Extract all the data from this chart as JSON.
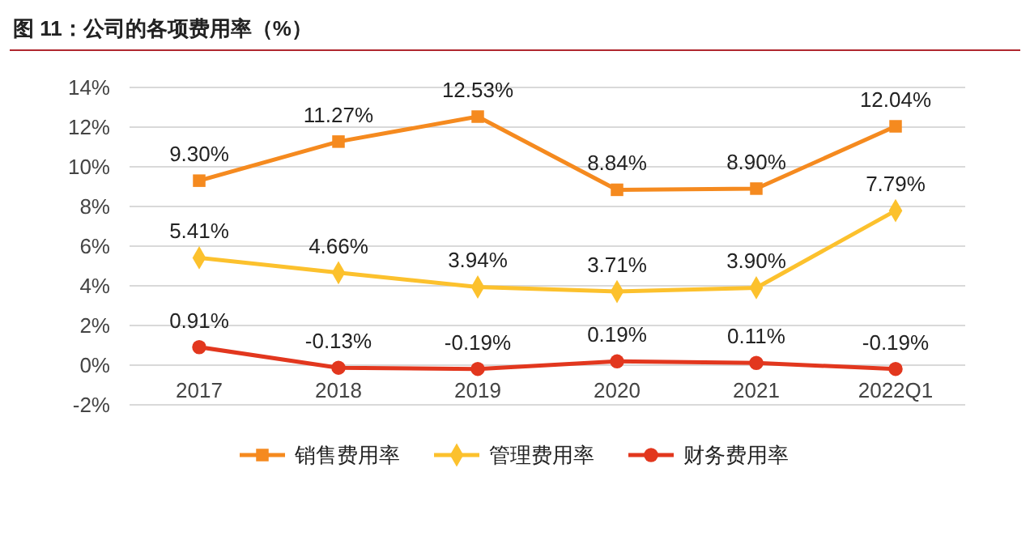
{
  "chart_data": {
    "type": "line",
    "title": "图 11：公司的各项费用率（%）",
    "categories": [
      "2017",
      "2018",
      "2019",
      "2020",
      "2021",
      "2022Q1"
    ],
    "series": [
      {
        "name": "销售费用率",
        "color": "#f58a1f",
        "marker": "square",
        "values": [
          9.3,
          11.27,
          12.53,
          8.84,
          8.9,
          12.04
        ],
        "value_labels": [
          "9.30%",
          "11.27%",
          "12.53%",
          "8.84%",
          "8.90%",
          "12.04%"
        ]
      },
      {
        "name": "管理费用率",
        "color": "#fcc12d",
        "marker": "diamond",
        "values": [
          5.41,
          4.66,
          3.94,
          3.71,
          3.9,
          7.79
        ],
        "value_labels": [
          "5.41%",
          "4.66%",
          "3.94%",
          "3.71%",
          "3.90%",
          "7.79%"
        ]
      },
      {
        "name": "财务费用率",
        "color": "#e2371e",
        "marker": "circle",
        "values": [
          0.91,
          -0.13,
          -0.19,
          0.19,
          0.11,
          -0.19
        ],
        "value_labels": [
          "0.91%",
          "-0.13%",
          "-0.19%",
          "0.19%",
          "0.11%",
          "-0.19%"
        ]
      }
    ],
    "ylim": [
      -2,
      14
    ],
    "yticks": [
      {
        "value": -2,
        "label": "-2%"
      },
      {
        "value": 0,
        "label": "0%"
      },
      {
        "value": 2,
        "label": "2%"
      },
      {
        "value": 4,
        "label": "4%"
      },
      {
        "value": 6,
        "label": "6%"
      },
      {
        "value": 8,
        "label": "8%"
      },
      {
        "value": 10,
        "label": "10%"
      },
      {
        "value": 12,
        "label": "12%"
      },
      {
        "value": 14,
        "label": "14%"
      }
    ],
    "grid": "y",
    "legend": "bottom",
    "line_style": "solid"
  }
}
